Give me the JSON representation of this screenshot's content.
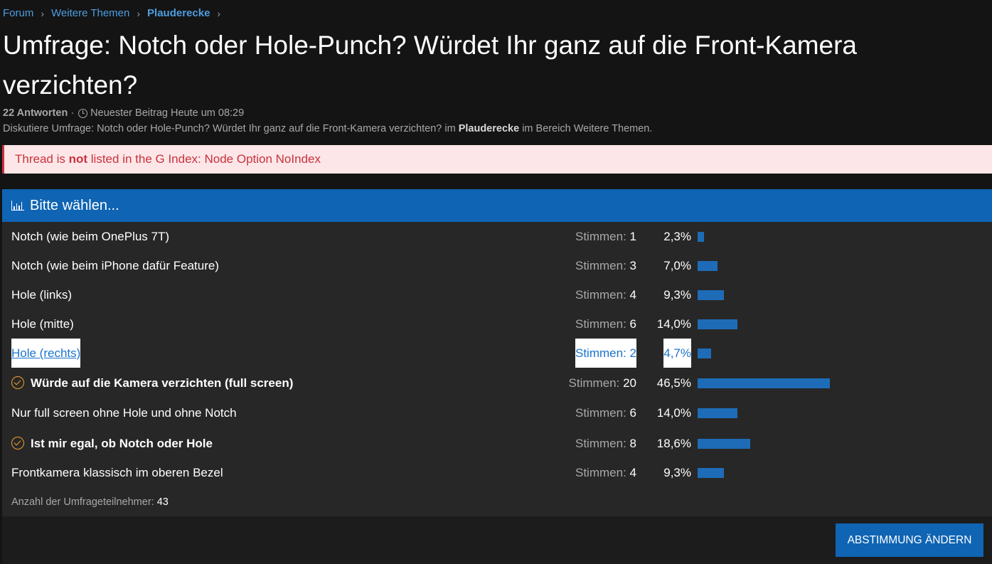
{
  "breadcrumb": {
    "items": [
      "Forum",
      "Weitere Themen",
      "Plauderecke"
    ],
    "separator": "›"
  },
  "thread": {
    "title": "Umfrage: Notch oder Hole-Punch? Würdet Ihr ganz auf die Front-Kamera verzichten?",
    "replies": "22 Antworten",
    "dot": "·",
    "latest_post": "Neuester Beitrag Heute um 08:29",
    "desc_pre": "Diskutiere Umfrage: Notch oder Hole-Punch? Würdet Ihr ganz auf die Front-Kamera verzichten? im",
    "desc_forum": "Plauderecke",
    "desc_post": "im Bereich Weitere Themen."
  },
  "alert": {
    "pre": "Thread is",
    "strong": "not",
    "post": "listed in the G Index: Node Option NoIndex",
    "color": "#c8323c"
  },
  "poll": {
    "header": "Bitte wählen...",
    "votes_label": "Stimmen:",
    "options": [
      {
        "label": "Notch (wie beim OnePlus 7T)",
        "votes": "1",
        "percent": "2,3%",
        "fraction": 0.023,
        "voted": false,
        "highlighted": false
      },
      {
        "label": "Notch (wie beim iPhone dafür Feature)",
        "votes": "3",
        "percent": "7,0%",
        "fraction": 0.07,
        "voted": false,
        "highlighted": false
      },
      {
        "label": "Hole (links)",
        "votes": "4",
        "percent": "9,3%",
        "fraction": 0.093,
        "voted": false,
        "highlighted": false
      },
      {
        "label": "Hole (mitte)",
        "votes": "6",
        "percent": "14,0%",
        "fraction": 0.14,
        "voted": false,
        "highlighted": false
      },
      {
        "label": "Hole (rechts)",
        "votes": "2",
        "percent": "4,7%",
        "fraction": 0.047,
        "voted": false,
        "highlighted": true
      },
      {
        "label": "Würde auf die Kamera verzichten (full screen)",
        "votes": "20",
        "percent": "46,5%",
        "fraction": 0.465,
        "voted": true,
        "highlighted": false
      },
      {
        "label": "Nur full screen ohne Hole und ohne Notch",
        "votes": "6",
        "percent": "14,0%",
        "fraction": 0.14,
        "voted": false,
        "highlighted": false
      },
      {
        "label": "Ist mir egal, ob Notch oder Hole",
        "votes": "8",
        "percent": "18,6%",
        "fraction": 0.186,
        "voted": true,
        "highlighted": false
      },
      {
        "label": "Frontkamera klassisch im oberen Bezel",
        "votes": "4",
        "percent": "9,3%",
        "fraction": 0.093,
        "voted": false,
        "highlighted": false
      }
    ],
    "participants_label": "Anzahl der Umfrageteilnehmer:",
    "participants": "43",
    "change_button": "ABSTIMMUNG ÄNDERN",
    "bar_color": "#1e6cb8",
    "header_color": "#0f64b3"
  }
}
